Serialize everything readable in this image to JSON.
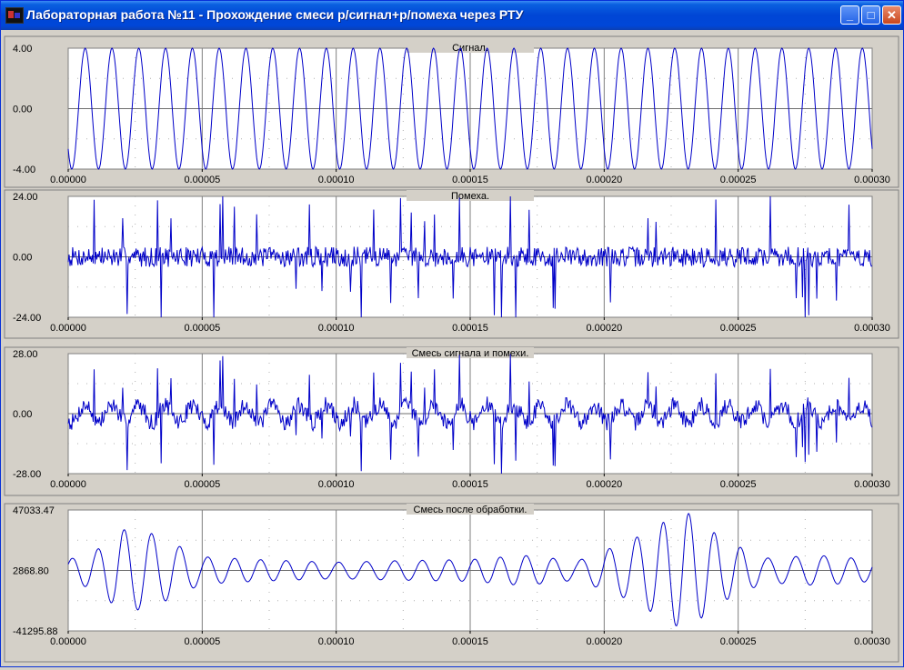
{
  "window": {
    "title": "Лабораторная работа №11 - Прохождение смеси р/сигнал+р/помеха через РТУ",
    "minimize_glyph": "_",
    "maximize_glyph": "□",
    "close_glyph": "✕"
  },
  "chart_data": [
    {
      "type": "line",
      "title": "Сигнал.",
      "ylim": [
        -4.0,
        4.0
      ],
      "yticks": [
        "4.00",
        "0.00",
        "-4.00"
      ],
      "xlim": [
        0.0,
        0.0003
      ],
      "xticks": [
        "0.00000",
        "0.00005",
        "0.00010",
        "0.00015",
        "0.00020",
        "0.00025",
        "0.00030"
      ],
      "grid": true,
      "signal": {
        "kind": "sine",
        "amplitude": 4.0,
        "cycles": 30
      }
    },
    {
      "type": "line",
      "title": "Помеха.",
      "ylim": [
        -24.0,
        24.0
      ],
      "yticks": [
        "24.00",
        "0.00",
        "-24.00"
      ],
      "xlim": [
        0.0,
        0.0003
      ],
      "xticks": [
        "0.00000",
        "0.00005",
        "0.00010",
        "0.00015",
        "0.00020",
        "0.00025",
        "0.00030"
      ],
      "grid": true,
      "signal": {
        "kind": "impulse-noise",
        "base_amplitude": 4.0,
        "peak_amplitude": 24.0,
        "seed": 7
      }
    },
    {
      "type": "line",
      "title": "Смесь сигнала и помехи.",
      "ylim": [
        -28.0,
        28.0
      ],
      "yticks": [
        "28.00",
        "0.00",
        "-28.00"
      ],
      "xlim": [
        0.0,
        0.0003
      ],
      "xticks": [
        "0.00000",
        "0.00005",
        "0.00010",
        "0.00015",
        "0.00020",
        "0.00025",
        "0.00030"
      ],
      "grid": true,
      "signal": {
        "kind": "mixture",
        "seed": 11
      }
    },
    {
      "type": "line",
      "title": "Смесь после обработки.",
      "ylim": [
        -41295.88,
        47033.47
      ],
      "yticks": [
        "47033.47",
        "2868.80",
        "-41295.88"
      ],
      "xlim": [
        0.0,
        0.0003
      ],
      "xticks": [
        "0.00000",
        "0.00005",
        "0.00010",
        "0.00015",
        "0.00020",
        "0.00025",
        "0.00030"
      ],
      "grid": true,
      "signal": {
        "kind": "filtered",
        "center": 2868.8,
        "envelope_x": [
          0.0,
          1e-05,
          2e-05,
          3e-05,
          5e-05,
          7e-05,
          0.0001,
          0.00012,
          0.00015,
          0.00017,
          0.00019,
          0.00021,
          0.00023,
          0.000245,
          0.00026,
          0.00028,
          0.0003
        ],
        "envelope_y": [
          8000,
          14000,
          30000,
          28000,
          10000,
          8000,
          6000,
          7000,
          8000,
          11000,
          7000,
          22000,
          44000,
          22000,
          9000,
          11000,
          8000
        ]
      }
    }
  ]
}
